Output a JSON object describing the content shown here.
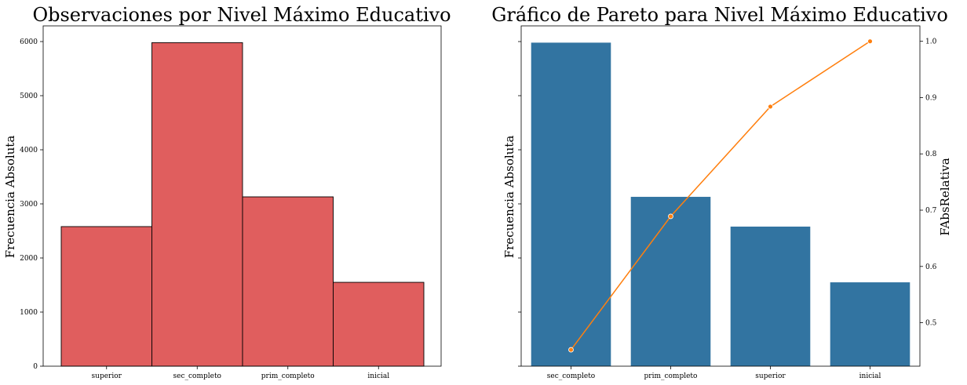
{
  "chart_data": [
    {
      "type": "bar",
      "title": "Observaciones por Nivel Máximo Educativo",
      "xlabel": "",
      "ylabel": "Frecuencia Absoluta",
      "categories": [
        "superior",
        "sec_completo",
        "prim_completo",
        "inicial"
      ],
      "values": [
        2580,
        5980,
        3130,
        1550
      ],
      "ylim": [
        0,
        6290
      ],
      "yticks": [
        0,
        1000,
        2000,
        3000,
        4000,
        5000,
        6000
      ],
      "grid": false,
      "color": "#e05e5e",
      "edgecolor": "#000000"
    },
    {
      "type": "bar",
      "title": "Gráfico de Pareto para  Nivel Máximo Educativo",
      "xlabel": "",
      "ylabel": "Frecuencia Absoluta",
      "y2label": "FAbsRelativa",
      "categories": [
        "sec_completo",
        "prim_completo",
        "superior",
        "inicial"
      ],
      "values": [
        5980,
        3130,
        2580,
        1550
      ],
      "ylim": [
        0,
        6290
      ],
      "bar_color": "#3274a1",
      "line": {
        "values": [
          0.452,
          0.689,
          0.884,
          1.0
        ],
        "color": "#ff7f0e"
      },
      "y2lim": [
        0.4228,
        1.0274
      ],
      "y2ticks": [
        "0.5",
        "0.6",
        "0.7",
        "0.8",
        "0.9",
        "1.0"
      ],
      "grid": false
    }
  ]
}
